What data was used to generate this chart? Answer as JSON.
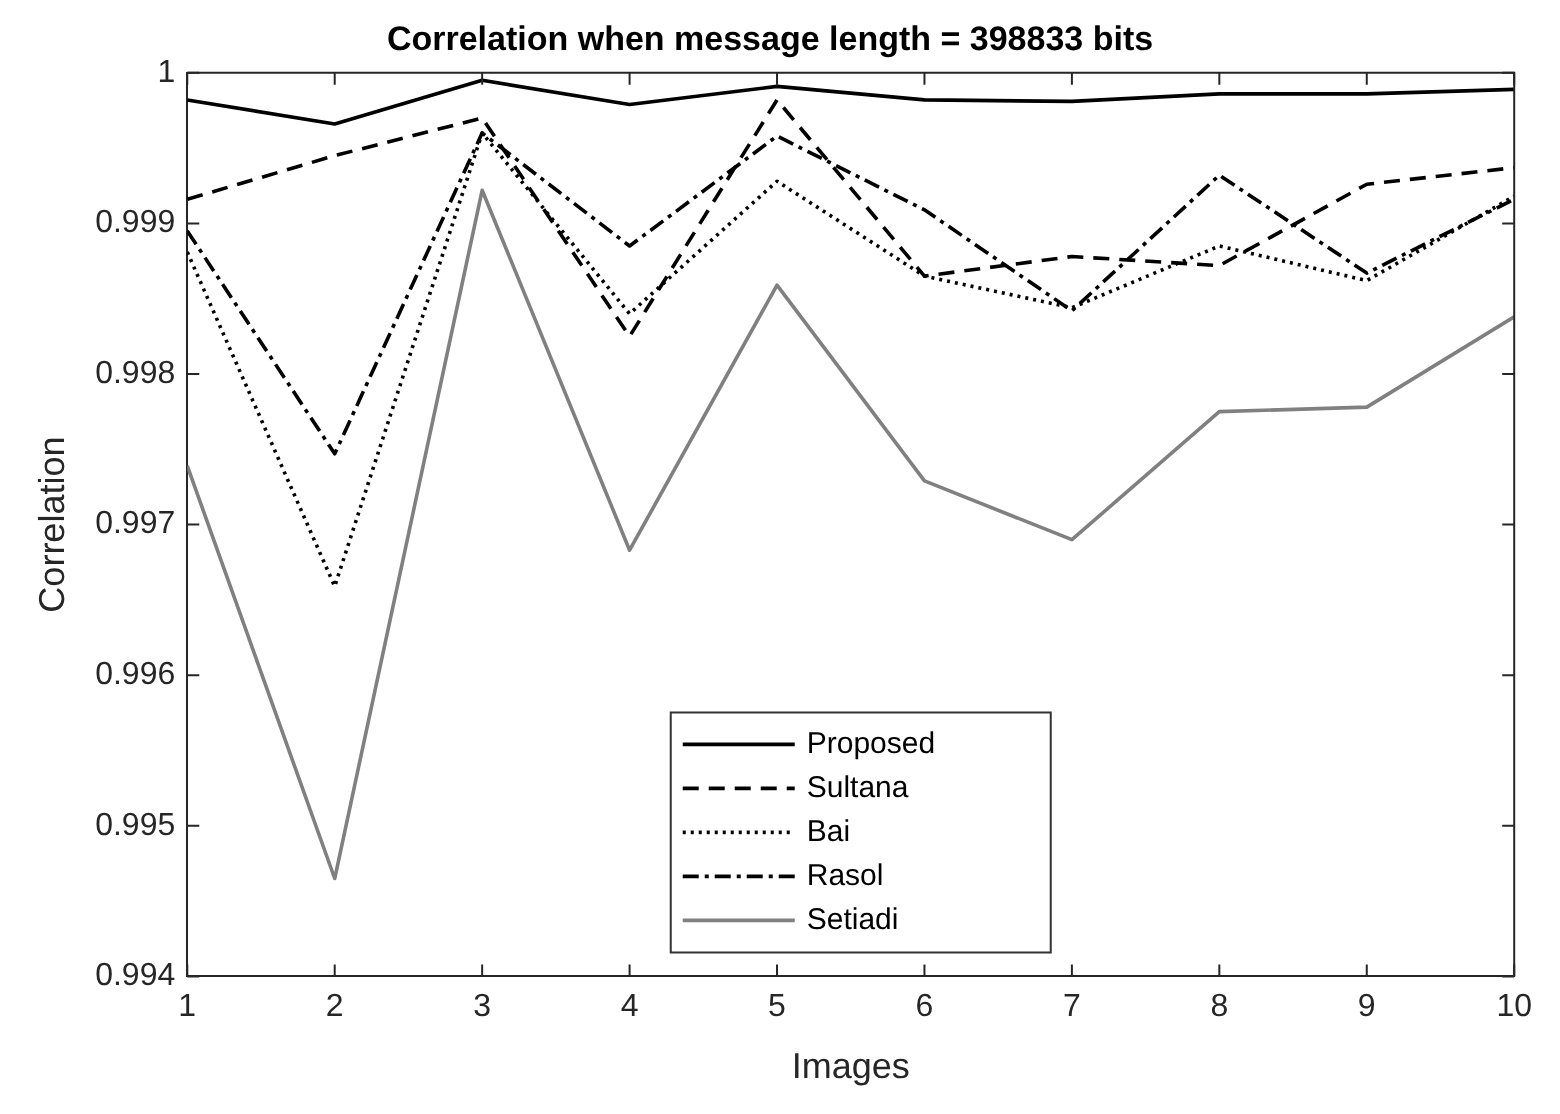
{
  "chart_data": {
    "type": "line",
    "title": "Correlation when message length = 398833 bits",
    "xlabel": "Images",
    "ylabel": "Correlation",
    "x": [
      1,
      2,
      3,
      4,
      5,
      6,
      7,
      8,
      9,
      10
    ],
    "xlim": [
      1,
      10
    ],
    "xticks": [
      1,
      2,
      3,
      4,
      5,
      6,
      7,
      8,
      9,
      10
    ],
    "ylim": [
      0.994,
      1
    ],
    "yticks": [
      0.994,
      0.995,
      0.996,
      0.997,
      0.998,
      0.999,
      1
    ],
    "grid": false,
    "legend": "bottom",
    "marker": "none",
    "series": [
      {
        "name": "Proposed",
        "color": "#000000",
        "line_style": "solid",
        "values": [
          0.99982,
          0.99966,
          0.99995,
          0.99979,
          0.99991,
          0.99982,
          0.99981,
          0.99986,
          0.99986,
          0.99989
        ]
      },
      {
        "name": "Sultana",
        "color": "#000000",
        "line_style": "dashed",
        "values": [
          0.99916,
          0.99945,
          0.9997,
          0.99825,
          0.99982,
          0.99865,
          0.99878,
          0.99872,
          0.99926,
          0.99937
        ]
      },
      {
        "name": "Bai",
        "color": "#000000",
        "line_style": "dotted",
        "values": [
          0.99881,
          0.99659,
          0.9996,
          0.9984,
          0.99928,
          0.99865,
          0.99844,
          0.99885,
          0.99862,
          0.99918
        ]
      },
      {
        "name": "Rasol",
        "color": "#000000",
        "line_style": "dashdot",
        "values": [
          0.99895,
          0.99747,
          0.9996,
          0.99885,
          0.99958,
          0.99909,
          0.99842,
          0.99932,
          0.99867,
          0.99916
        ]
      },
      {
        "name": "Setiadi",
        "color": "#808080",
        "line_style": "solid",
        "values": [
          0.99739,
          0.99465,
          0.99922,
          0.99683,
          0.99859,
          0.99729,
          0.9969,
          0.99775,
          0.99778,
          0.99838
        ]
      }
    ]
  }
}
